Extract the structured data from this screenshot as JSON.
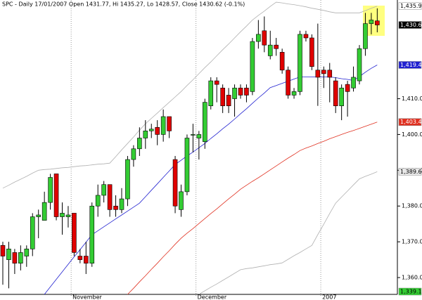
{
  "chart_data": {
    "type": "candlestick",
    "title": "SPC - Daily 17/01/2007 Open 1431.77, Hi 1435.27, Lo 1428.57, Close 1430.62 (-0.1%)",
    "categories": [
      null,
      null,
      null,
      null,
      null,
      null,
      null,
      null,
      null,
      null,
      null,
      null,
      "November",
      null,
      null,
      null,
      null,
      null,
      null,
      null,
      null,
      null,
      null,
      null,
      null,
      null,
      null,
      null,
      null,
      null,
      null,
      null,
      null,
      "December",
      null,
      null,
      null,
      null,
      null,
      null,
      null,
      null,
      null,
      null,
      null,
      null,
      null,
      null,
      null,
      null,
      null,
      null,
      null,
      null,
      "2007",
      null,
      null,
      null,
      null,
      null,
      null,
      null,
      null,
      null
    ],
    "open": [
      1369,
      1365,
      1367,
      1364,
      1366,
      1368,
      1377,
      1376,
      1381,
      1389,
      1377,
      1377,
      1378,
      1366,
      1366,
      1364,
      1380,
      1383,
      1386,
      1380,
      1379,
      1382,
      1393,
      1396,
      1399,
      1401,
      1402,
      1400,
      1405,
      1393,
      1379,
      1384,
      1400,
      1399,
      1398,
      1408,
      1415,
      1413,
      1411,
      1410,
      1413,
      1413,
      1412,
      1426,
      1429,
      1422,
      1425,
      1423,
      1418,
      1411,
      1412,
      1428,
      1427,
      1418,
      1418,
      1418,
      1415,
      1408,
      1414,
      1413,
      1415,
      1424,
      1431,
      1431.77
    ],
    "high": [
      1370,
      1370,
      1368,
      1369,
      1369,
      1378,
      1379,
      1384,
      1389,
      1389,
      1381,
      1380,
      1378,
      1368,
      1370,
      1381,
      1386,
      1387,
      1386,
      1383,
      1385,
      1394,
      1397,
      1402,
      1404,
      1403,
      1404,
      1407,
      1405,
      1394,
      1386,
      1400,
      1403,
      1401,
      1410,
      1416,
      1416,
      1414,
      1413,
      1414,
      1414,
      1414,
      1427,
      1432,
      1433,
      1429,
      1427,
      1424,
      1419,
      1413,
      1429,
      1429,
      1428,
      1431,
      1419,
      1420,
      1416,
      1414,
      1415,
      1419,
      1425,
      1434,
      1434,
      1435.27
    ],
    "low": [
      1358,
      1357,
      1361,
      1362,
      1363,
      1366,
      1371,
      1376,
      1379,
      1376,
      1372,
      1374,
      1366,
      1364,
      1361,
      1363,
      1377,
      1381,
      1377,
      1377,
      1378,
      1380,
      1391,
      1394,
      1396,
      1399,
      1397,
      1398,
      1399,
      1378,
      1377,
      1383,
      1395,
      1393,
      1396,
      1407,
      1409,
      1406,
      1406,
      1405,
      1410,
      1409,
      1411,
      1424,
      1423,
      1421,
      1422,
      1417,
      1410,
      1410,
      1411,
      1426,
      1418,
      1408,
      1413,
      1409,
      1406,
      1404,
      1405,
      1412,
      1414,
      1422,
      1428,
      1428.57
    ],
    "close": [
      1366,
      1368,
      1364,
      1367,
      1368,
      1377,
      1377.5,
      1381,
      1388,
      1377,
      1378,
      1377.5,
      1367,
      1365,
      1364,
      1380,
      1383,
      1386,
      1379,
      1379,
      1382,
      1393,
      1396,
      1399,
      1401,
      1401.5,
      1400,
      1405,
      1401,
      1380,
      1384,
      1399,
      1400,
      1400,
      1409,
      1415,
      1414,
      1408,
      1408,
      1413,
      1411,
      1411,
      1426,
      1428,
      1425,
      1425,
      1424,
      1418,
      1411,
      1412,
      1428,
      1427,
      1419,
      1416,
      1417,
      1416,
      1408,
      1413,
      1412,
      1416,
      1424,
      1431,
      1432,
      1430.62
    ],
    "up_color": "#33cc33",
    "down_color": "#e00000",
    "overlays": [
      {
        "color": "#b0b0b0",
        "values": [
          1385.0,
          1385.8,
          1386.7,
          1387.5,
          1388.3,
          1389.2,
          1390.0,
          1390.2,
          1390.3,
          1390.5,
          1390.7,
          1390.8,
          1391.0,
          1391.2,
          1391.3,
          1391.5,
          1391.7,
          1391.8,
          1392.0,
          1393.8,
          1395.7,
          1397.5,
          1399.3,
          1401.2,
          1403.0,
          1404.5,
          1406.0,
          1407.5,
          1409.0,
          1410.5,
          1412.0,
          1413.7,
          1415.3,
          1417.0,
          1418.7,
          1420.3,
          1422.0,
          1423.7,
          1425.3,
          1427.0,
          1428.7,
          1430.3,
          1432.0,
          1433.3,
          1434.5,
          1435.8,
          1437.0,
          1436.8,
          1436.5,
          1436.3,
          1436.0,
          1435.7,
          1435.3,
          1435.0,
          1434.7,
          1434.3,
          1434.0,
          1434.0,
          1434.0,
          1434.0,
          1434.0,
          1434.6,
          1435.3,
          1435.9
        ]
      },
      {
        "color": "#2020d0",
        "values": [
          null,
          null,
          null,
          null,
          null,
          null,
          null,
          1355.3,
          1357.4,
          1359.5,
          1361.6,
          1363.7,
          1365.8,
          1367.8,
          1369.9,
          1372.0,
          1373.1,
          1374.2,
          1375.3,
          1376.4,
          1377.5,
          1378.6,
          1379.7,
          1380.8,
          1382.6,
          1384.4,
          1386.2,
          1388.0,
          1389.8,
          1391.6,
          1392.8,
          1394.0,
          1395.1,
          1396.3,
          1397.5,
          1398.9,
          1400.2,
          1401.6,
          1402.9,
          1404.3,
          1405.8,
          1407.2,
          1408.7,
          1410.2,
          1411.6,
          1413.1,
          1413.7,
          1414.3,
          1414.9,
          1415.5,
          1416.1,
          1416.1,
          1416.1,
          1416.1,
          1416.1,
          1416.1,
          1415.9,
          1415.6,
          1415.4,
          1415.1,
          1416.2,
          1417.4,
          1418.5,
          1419.44
        ]
      },
      {
        "color": "#e03020",
        "values": [
          null,
          null,
          null,
          null,
          null,
          null,
          null,
          null,
          null,
          null,
          null,
          null,
          null,
          null,
          null,
          null,
          null,
          null,
          null,
          null,
          null,
          1355.3,
          1357.0,
          1358.8,
          1360.5,
          1362.3,
          1364.0,
          1365.8,
          1367.5,
          1369.3,
          1371.0,
          1372.4,
          1373.7,
          1375.1,
          1376.5,
          1377.9,
          1379.2,
          1380.6,
          1382.0,
          1383.3,
          1384.7,
          1385.8,
          1386.9,
          1387.9,
          1389.0,
          1390.1,
          1391.2,
          1392.3,
          1393.4,
          1394.4,
          1395.5,
          1396.2,
          1396.8,
          1397.5,
          1398.1,
          1398.8,
          1399.4,
          1400.0,
          1400.6,
          1401.1,
          1401.7,
          1402.3,
          1402.9,
          1403.48
        ]
      },
      {
        "color": "#b0b0b0",
        "values": [
          null,
          null,
          null,
          null,
          null,
          null,
          null,
          null,
          null,
          null,
          null,
          null,
          null,
          null,
          null,
          null,
          null,
          null,
          null,
          null,
          null,
          null,
          null,
          null,
          null,
          null,
          null,
          null,
          null,
          null,
          null,
          null,
          null,
          1355.3,
          1356.3,
          1357.3,
          1358.2,
          1359.2,
          1360.2,
          1361.2,
          1362.2,
          1362.5,
          1362.7,
          1363.0,
          1363.3,
          1363.6,
          1363.8,
          1364.1,
          1365.1,
          1366.1,
          1367.0,
          1368.0,
          1369.0,
          1372.0,
          1374.9,
          1377.9,
          1380.8,
          1382.5,
          1384.2,
          1385.9,
          1387.6,
          1388.3,
          1388.9,
          1389.6
        ]
      }
    ],
    "price_labels": [
      {
        "value": 1435.9,
        "label": "1,435.9",
        "color": "#ffffff",
        "text_color": "#000000"
      },
      {
        "value": 1430.62,
        "label": "1,430.62",
        "color": "#000000",
        "text_color": "#ffffff"
      },
      {
        "value": 1419.44,
        "label": "1,419.44",
        "color": "#2020d0",
        "text_color": "#ffffff"
      },
      {
        "value": 1403.48,
        "label": "1,403.48",
        "color": "#e03020",
        "text_color": "#ffffff"
      },
      {
        "value": 1389.6,
        "label": "1,389.6",
        "color": "#e8e8e8",
        "text_color": "#000000"
      },
      {
        "value": 1339.1,
        "label": "1,339.1",
        "color": "#33cc33",
        "text_color": "#000000"
      }
    ],
    "ylim": [
      1355.3,
      1437.6
    ],
    "yticks": [
      {
        "value": 1410,
        "label": "1,410.0"
      },
      {
        "value": 1400,
        "label": "1,400.0"
      },
      {
        "value": 1390,
        "label": "1,390.0"
      },
      {
        "value": 1380,
        "label": "1,380.0"
      },
      {
        "value": 1370,
        "label": "1,370.0"
      },
      {
        "value": 1360,
        "label": "1,360.0"
      }
    ]
  }
}
